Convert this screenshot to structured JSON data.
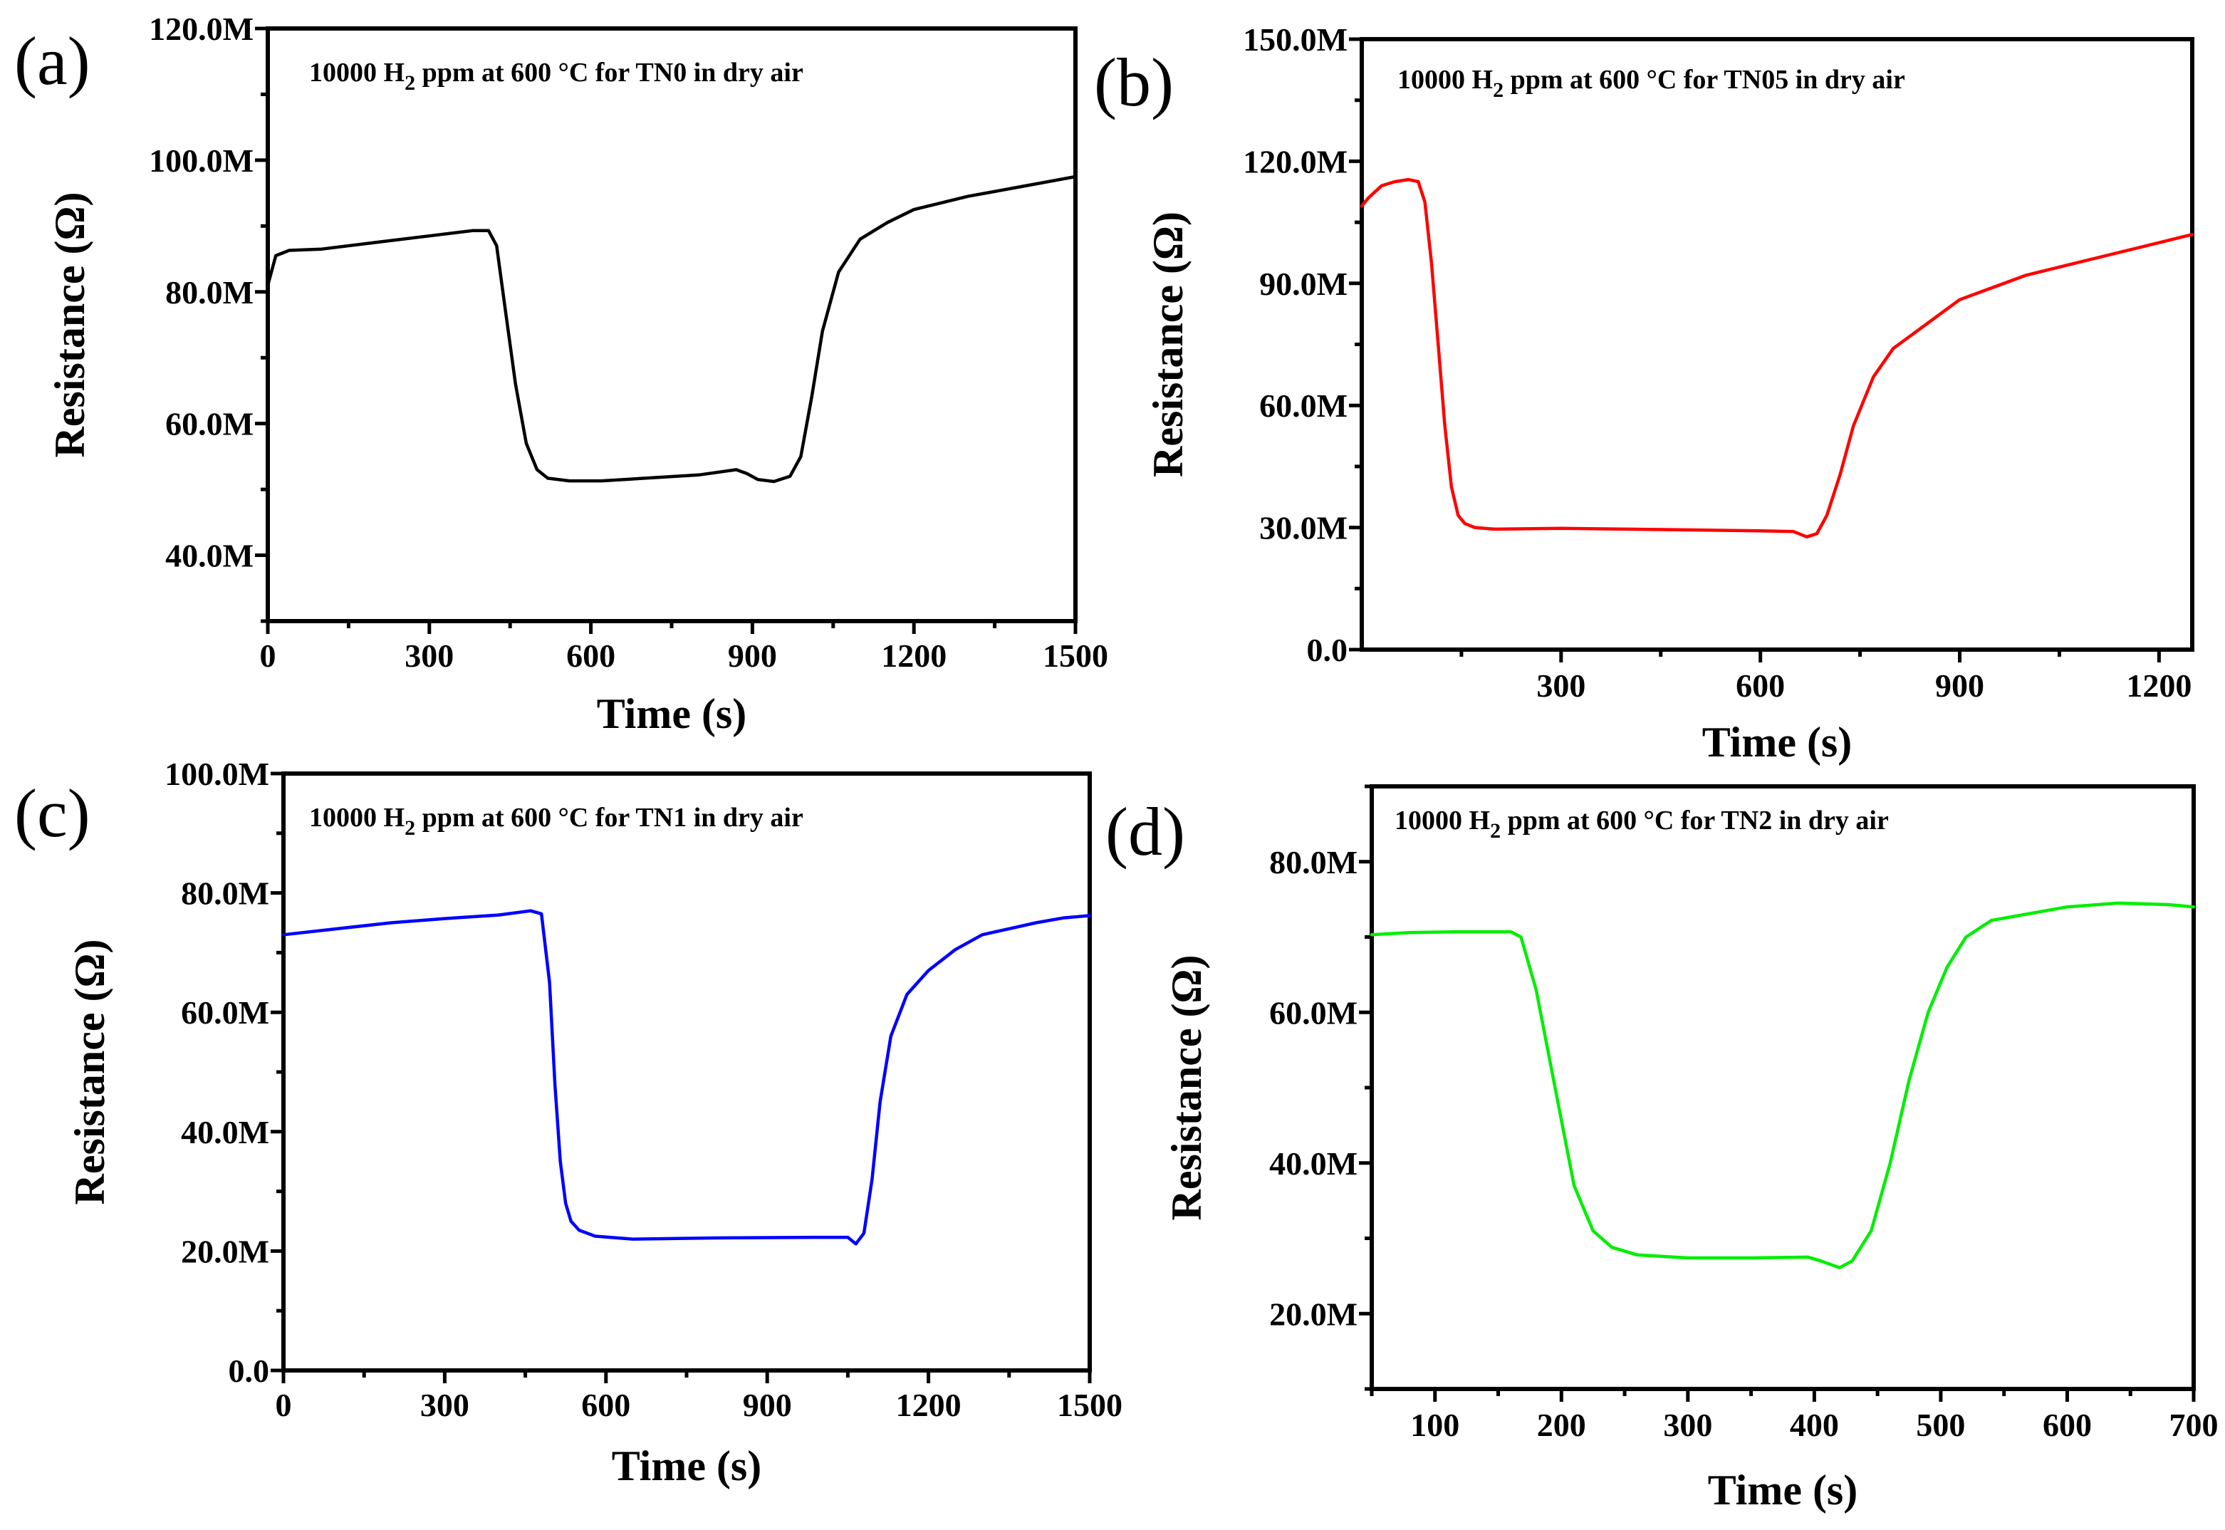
{
  "chart_data": [
    {
      "type": "line",
      "panel_label": "(a)",
      "annotation": {
        "prefix": "10000 H",
        "subscript": "2",
        "suffix": " ppm at 600 °C for TN0 in dry air"
      },
      "xlabel": "Time (s)",
      "ylabel": "Resistance (Ω)",
      "xlim": [
        0,
        1500
      ],
      "ylim": [
        30000000,
        120000000
      ],
      "xticks": [
        0,
        300,
        600,
        900,
        1200,
        1500
      ],
      "xtick_labels": [
        "0",
        "300",
        "600",
        "900",
        "1200",
        "1500"
      ],
      "yticks": [
        40000000,
        60000000,
        80000000,
        100000000,
        120000000
      ],
      "ytick_labels": [
        "40.0M",
        "60.0M",
        "80.0M",
        "100.0M",
        "120.0M"
      ],
      "series": [
        {
          "name": "TN0",
          "color": "#000000",
          "x": [
            0,
            15,
            40,
            100,
            200,
            300,
            380,
            410,
            425,
            440,
            460,
            480,
            500,
            520,
            560,
            620,
            700,
            800,
            870,
            890,
            910,
            940,
            970,
            990,
            1010,
            1030,
            1060,
            1100,
            1150,
            1200,
            1300,
            1400,
            1500
          ],
          "y": [
            81000000,
            85500000,
            86300000,
            86500000,
            87500000,
            88500000,
            89300000,
            89300000,
            87000000,
            78000000,
            66000000,
            57000000,
            53000000,
            51700000,
            51300000,
            51300000,
            51700000,
            52200000,
            53000000,
            52400000,
            51500000,
            51200000,
            52000000,
            55000000,
            64000000,
            74000000,
            83000000,
            88000000,
            90500000,
            92500000,
            94500000,
            96000000,
            97500000
          ]
        }
      ]
    },
    {
      "type": "line",
      "panel_label": "(b)",
      "annotation": {
        "prefix": "10000 H",
        "subscript": "2",
        "suffix": " ppm at 600 °C for TN05 in dry air"
      },
      "xlabel": "Time (s)",
      "ylabel": "Resistance (Ω)",
      "xlim": [
        0,
        1250
      ],
      "ylim": [
        0,
        150000000
      ],
      "xticks": [
        300,
        600,
        900,
        1200
      ],
      "xtick_labels": [
        "300",
        "600",
        "900",
        "1200"
      ],
      "yticks": [
        0,
        30000000,
        60000000,
        90000000,
        120000000,
        150000000
      ],
      "ytick_labels": [
        "0.0",
        "30.0M",
        "60.0M",
        "90.0M",
        "120.0M",
        "150.0M"
      ],
      "series": [
        {
          "name": "TN05",
          "color": "#ff0000",
          "x": [
            0,
            10,
            30,
            50,
            70,
            85,
            95,
            105,
            115,
            125,
            135,
            145,
            155,
            170,
            200,
            300,
            400,
            500,
            600,
            650,
            670,
            685,
            700,
            720,
            740,
            770,
            800,
            850,
            900,
            1000,
            1100,
            1200,
            1250
          ],
          "y": [
            109000000,
            111000000,
            114000000,
            115000000,
            115500000,
            115000000,
            110000000,
            95000000,
            75000000,
            55000000,
            40000000,
            33000000,
            31000000,
            30000000,
            29600000,
            29800000,
            29600000,
            29400000,
            29200000,
            29000000,
            27700000,
            28500000,
            33000000,
            43000000,
            55000000,
            67000000,
            74000000,
            80000000,
            86000000,
            92000000,
            96000000,
            100000000,
            102000000
          ]
        }
      ]
    },
    {
      "type": "line",
      "panel_label": "(c)",
      "annotation": {
        "prefix": "10000 H",
        "subscript": "2",
        "suffix": " ppm at 600 °C for TN1 in dry air"
      },
      "xlabel": "Time (s)",
      "ylabel": "Resistance (Ω)",
      "xlim": [
        0,
        1500
      ],
      "ylim": [
        0,
        100000000
      ],
      "xticks": [
        0,
        300,
        600,
        900,
        1200,
        1500
      ],
      "xtick_labels": [
        "0",
        "300",
        "600",
        "900",
        "1200",
        "1500"
      ],
      "yticks": [
        0,
        20000000,
        40000000,
        60000000,
        80000000,
        100000000
      ],
      "ytick_labels": [
        "0.0",
        "20.0M",
        "40.0M",
        "60.0M",
        "80.0M",
        "100.0M"
      ],
      "series": [
        {
          "name": "TN1",
          "color": "#0000ff",
          "x": [
            0,
            100,
            200,
            300,
            400,
            460,
            480,
            495,
            505,
            515,
            525,
            535,
            550,
            580,
            650,
            800,
            1000,
            1050,
            1065,
            1080,
            1095,
            1110,
            1130,
            1160,
            1200,
            1250,
            1300,
            1350,
            1400,
            1450,
            1500
          ],
          "y": [
            73000000,
            74000000,
            75000000,
            75700000,
            76300000,
            77000000,
            76500000,
            65000000,
            48000000,
            35000000,
            28000000,
            25000000,
            23500000,
            22500000,
            22000000,
            22200000,
            22300000,
            22300000,
            21200000,
            23000000,
            32000000,
            45000000,
            56000000,
            63000000,
            67000000,
            70500000,
            73000000,
            74000000,
            75000000,
            75800000,
            76200000
          ]
        }
      ]
    },
    {
      "type": "line",
      "panel_label": "(d)",
      "annotation": {
        "prefix": "10000 H",
        "subscript": "2",
        "suffix": " ppm at 600 °C for TN2 in dry air"
      },
      "xlabel": "Time (s)",
      "ylabel": "Resistance (Ω)",
      "xlim": [
        50,
        700
      ],
      "ylim": [
        10000000,
        90000000
      ],
      "xticks": [
        100,
        200,
        300,
        400,
        500,
        600,
        700
      ],
      "xtick_labels": [
        "100",
        "200",
        "300",
        "400",
        "500",
        "600",
        "700"
      ],
      "yticks": [
        20000000,
        40000000,
        60000000,
        80000000
      ],
      "ytick_labels": [
        "20.0M",
        "40.0M",
        "60.0M",
        "80.0M"
      ],
      "series": [
        {
          "name": "TN2",
          "color": "#00ee00",
          "x": [
            50,
            80,
            120,
            160,
            168,
            180,
            195,
            210,
            225,
            240,
            260,
            300,
            350,
            395,
            405,
            420,
            430,
            445,
            460,
            475,
            490,
            505,
            520,
            540,
            560,
            600,
            640,
            680,
            700
          ],
          "y": [
            70300000,
            70600000,
            70700000,
            70700000,
            70000000,
            63000000,
            50000000,
            37000000,
            31000000,
            28800000,
            27800000,
            27400000,
            27400000,
            27500000,
            27000000,
            26100000,
            27000000,
            31000000,
            40000000,
            51000000,
            60000000,
            66000000,
            70000000,
            72200000,
            72800000,
            74000000,
            74500000,
            74300000,
            74000000
          ]
        }
      ]
    }
  ]
}
